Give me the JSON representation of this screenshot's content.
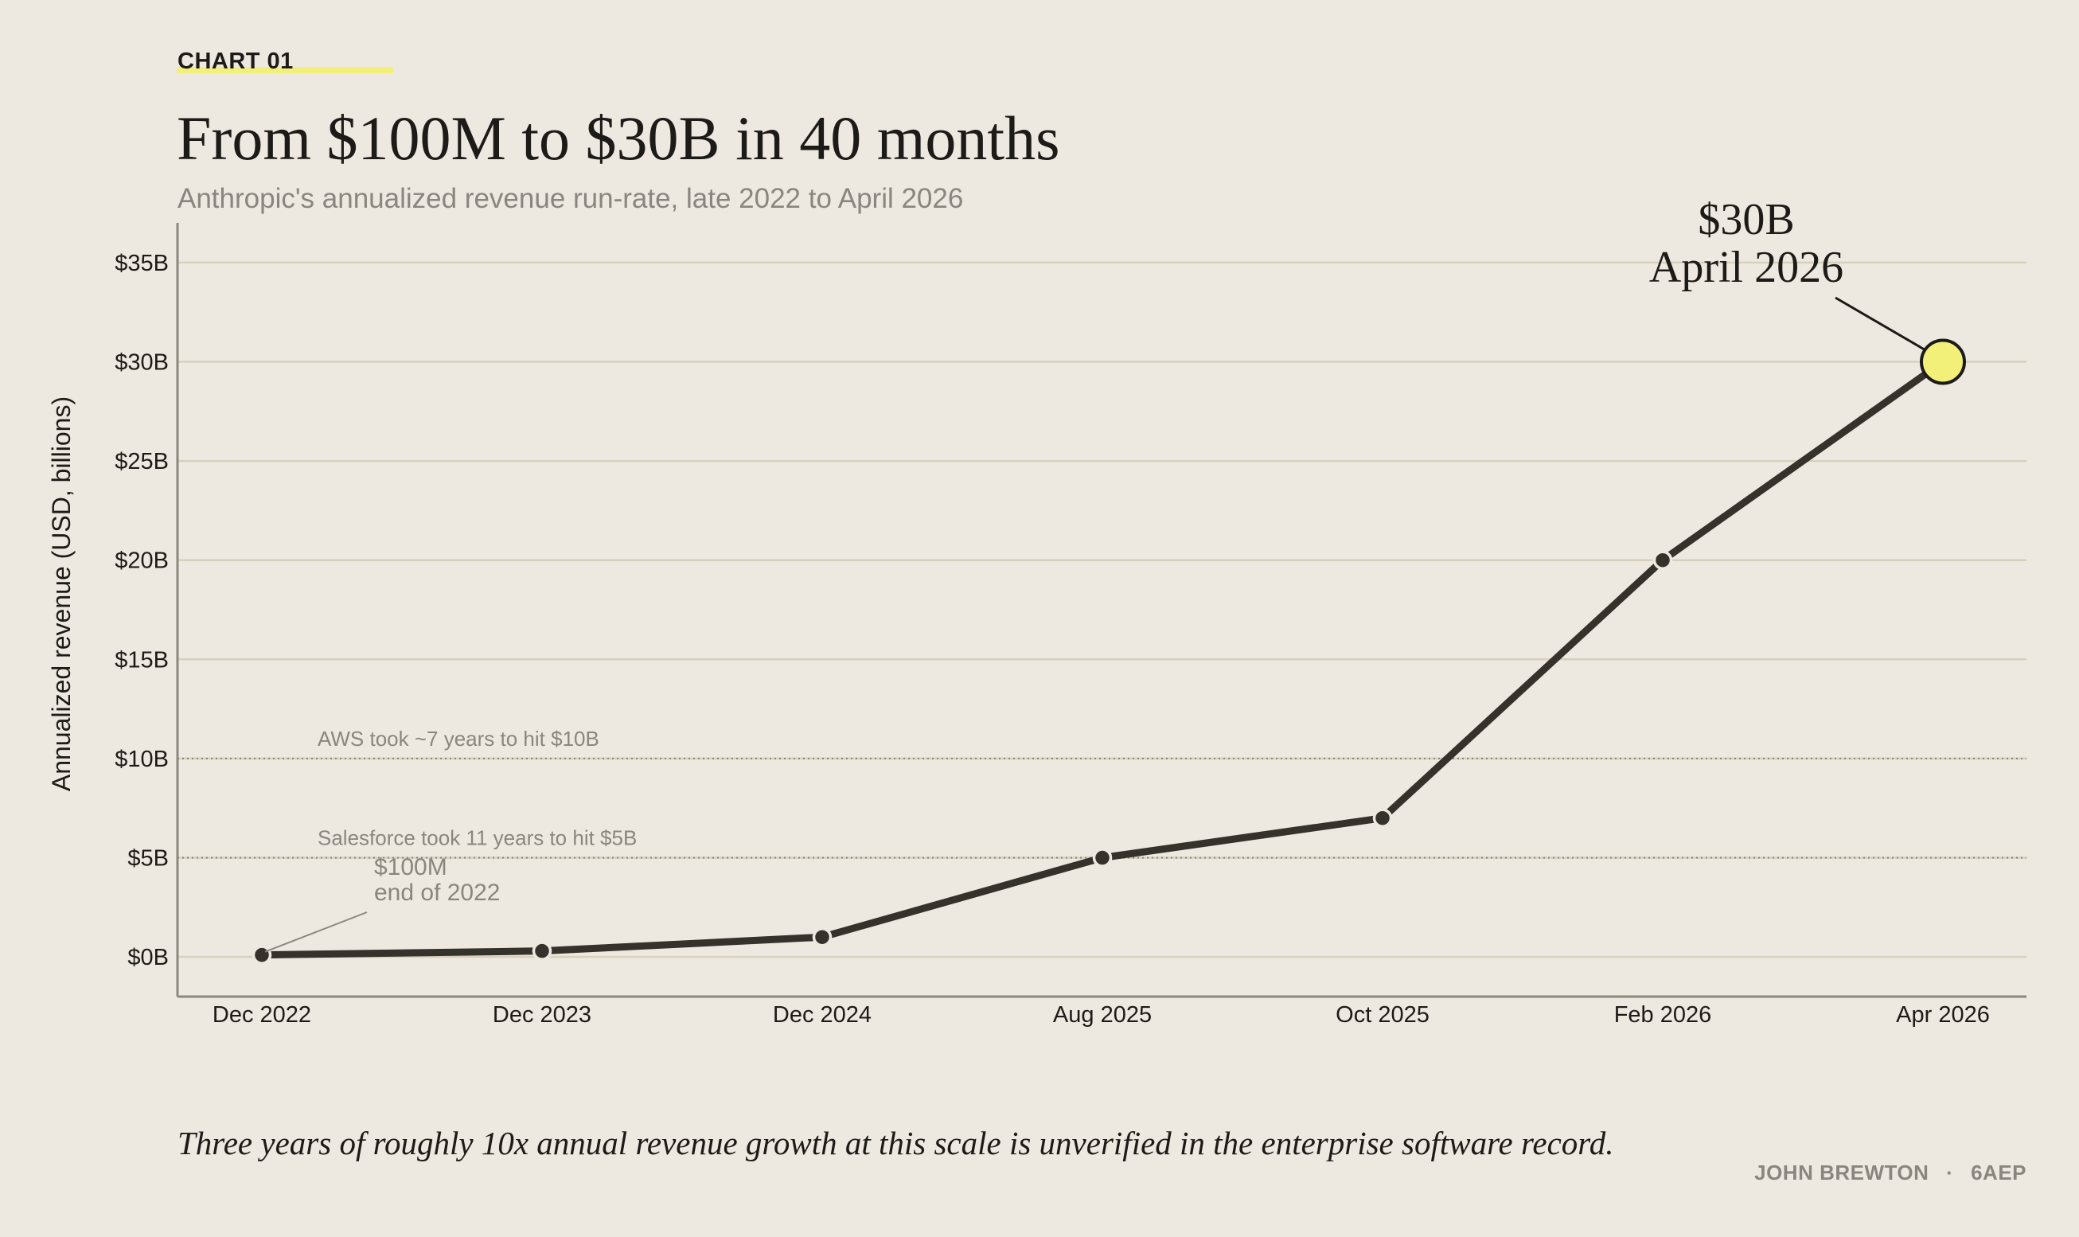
{
  "header": {
    "kicker": "CHART 01",
    "accent_color": "#f3f07a"
  },
  "caption": "Three years of roughly 10x annual revenue growth at this scale is unverified in the enterprise software record.",
  "credit": {
    "author": "JOHN BREWTON",
    "separator": "·",
    "org": "6AEP"
  },
  "chart_data": {
    "type": "line",
    "title": "From $100M to $30B in 40 months",
    "subtitle": "Anthropic's annualized revenue run-rate, late 2022 to April 2026",
    "xlabel": "",
    "ylabel": "Annualized revenue (USD, billions)",
    "ylim": [
      -2,
      37
    ],
    "yticks": [
      0,
      5,
      10,
      15,
      20,
      25,
      30,
      35
    ],
    "ytick_labels": [
      "$0B",
      "$5B",
      "$10B",
      "$15B",
      "$20B",
      "$25B",
      "$30B",
      "$35B"
    ],
    "grid": true,
    "categories": [
      "Dec 2022",
      "Dec 2023",
      "Dec 2024",
      "Aug 2025",
      "Oct 2025",
      "Feb 2026",
      "Apr 2026"
    ],
    "series": [
      {
        "values": [
          0.1,
          0.3,
          1,
          5,
          7,
          20,
          30
        ],
        "color": "#35312b"
      }
    ],
    "reference_lines": [
      {
        "value": 10,
        "label": "AWS took ~7 years to hit $10B"
      },
      {
        "value": 5,
        "label": "Salesforce took 11 years to hit $5B"
      }
    ],
    "annotations": [
      {
        "point_index": 0,
        "lines": [
          "$100M",
          "end of 2022"
        ],
        "style": "small"
      },
      {
        "point_index": 6,
        "lines": [
          "$30B",
          "April 2026"
        ],
        "style": "large",
        "marker_color": "#f3f07a"
      }
    ]
  }
}
